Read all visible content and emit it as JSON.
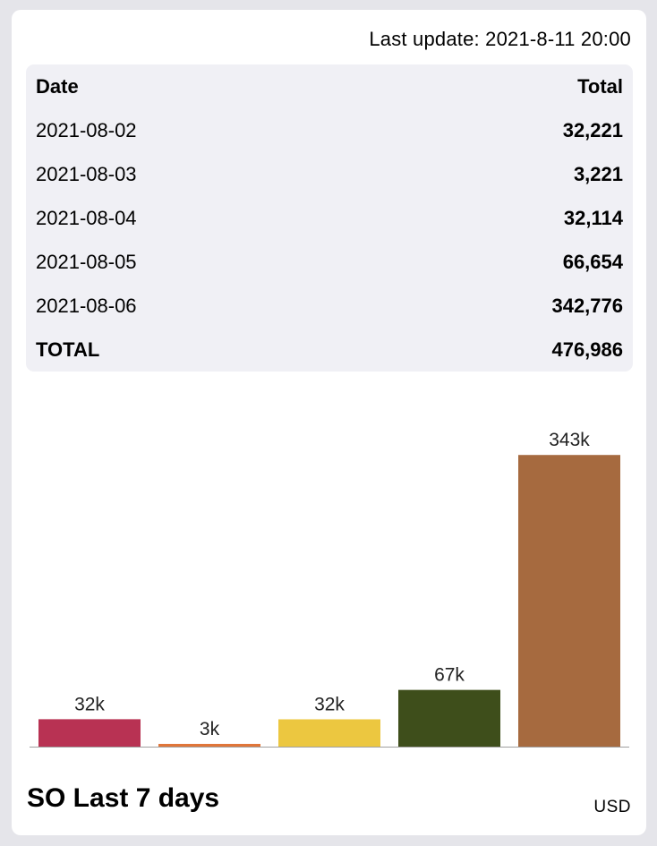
{
  "header": {
    "last_update": "Last update: 2021-8-11 20:00"
  },
  "table": {
    "col_date": "Date",
    "col_total": "Total",
    "rows": [
      {
        "date": "2021-08-02",
        "total": "32,221"
      },
      {
        "date": "2021-08-03",
        "total": "3,221"
      },
      {
        "date": "2021-08-04",
        "total": "32,114"
      },
      {
        "date": "2021-08-05",
        "total": "66,654"
      },
      {
        "date": "2021-08-06",
        "total": "342,776"
      }
    ],
    "total_label": "TOTAL",
    "total_value": "476,986"
  },
  "chart_data": {
    "type": "bar",
    "categories": [
      "2021-08-02",
      "2021-08-03",
      "2021-08-04",
      "2021-08-05",
      "2021-08-06"
    ],
    "values": [
      32221,
      3221,
      32114,
      66654,
      342776
    ],
    "data_labels": [
      "32k",
      "3k",
      "32k",
      "67k",
      "343k"
    ],
    "colors": [
      "#b83253",
      "#e0763a",
      "#ecc740",
      "#3e4e1b",
      "#a66a3f"
    ],
    "ylim": [
      0,
      343000
    ],
    "grid": false
  },
  "footer": {
    "title": "SO Last 7 days",
    "unit": "USD"
  }
}
